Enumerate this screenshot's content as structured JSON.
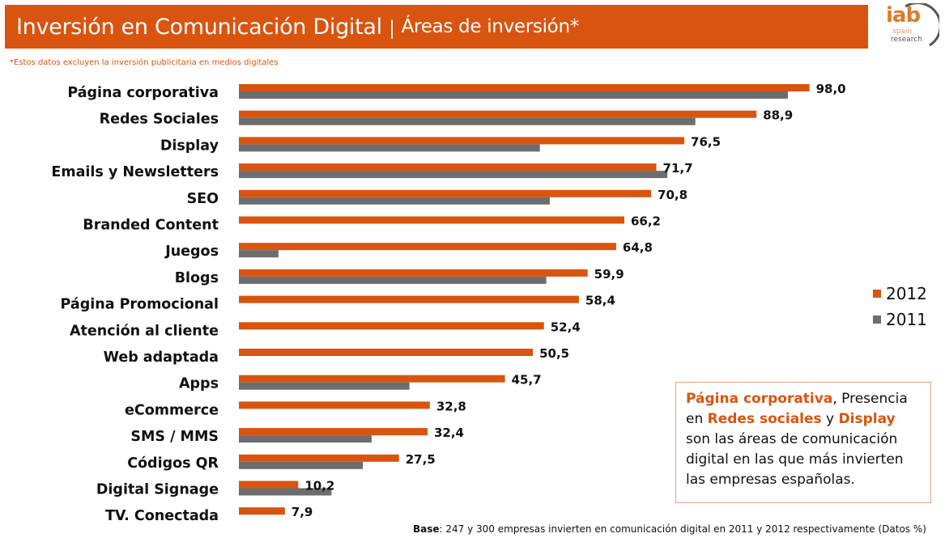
{
  "header": {
    "title": "Inversión en Comunicación Digital",
    "separator": "|",
    "subtitle": "Áreas de inversión*"
  },
  "logo": {
    "main": "iab",
    "line1": "spain",
    "line2": "research"
  },
  "note": "*Estos datos excluyen la inversión publicitaria en medios digitales",
  "colors": {
    "series_2012": "#d9540f",
    "series_2011": "#6d6d6f",
    "accent": "#d9540f"
  },
  "callout": {
    "h1": "Página corporativa",
    "t1": ", Presencia en ",
    "h2": "Redes sociales",
    "t2": " y ",
    "h3": "Display",
    "t3": " son las áreas de comunicación digital en las que más invierten las empresas españolas."
  },
  "base": {
    "label": "Base",
    "text": ": 247 y 300 empresas invierten en comunicación digital en 2011 y 2012 respectivamente (Datos %)"
  },
  "chart_data": {
    "type": "bar",
    "orientation": "horizontal",
    "title": "Inversión en Comunicación Digital | Áreas de inversión*",
    "xlabel": "",
    "ylabel": "",
    "unit": "%",
    "xlim": [
      0,
      100
    ],
    "grid": false,
    "legend_position": "right",
    "categories": [
      "Página corporativa",
      "Redes Sociales",
      "Display",
      "Emails y Newsletters",
      "SEO",
      "Branded Content",
      "Juegos",
      "Blogs",
      "Página Promocional",
      "Atención al cliente",
      "Web adaptada",
      "Apps",
      "eCommerce",
      "SMS / MMS",
      "Códigos QR",
      "Digital Signage",
      "TV. Conectada"
    ],
    "series": [
      {
        "name": "2012",
        "values": [
          98.0,
          88.9,
          76.5,
          71.7,
          70.8,
          66.2,
          64.8,
          59.9,
          58.4,
          52.4,
          50.5,
          45.7,
          32.8,
          32.4,
          27.5,
          10.2,
          7.9
        ],
        "labels": [
          "98,0",
          "88,9",
          "76,5",
          "71,7",
          "70,8",
          "66,2",
          "64,8",
          "59,9",
          "58,4",
          "52,4",
          "50,5",
          "45,7",
          "32,8",
          "32,4",
          "27,5",
          "10,2",
          "7,9"
        ]
      },
      {
        "name": "2011",
        "values": [
          94.3,
          78.4,
          51.7,
          73.6,
          53.4,
          null,
          6.8,
          52.8,
          null,
          null,
          null,
          29.3,
          null,
          22.8,
          21.3,
          15.9,
          null
        ]
      }
    ]
  }
}
